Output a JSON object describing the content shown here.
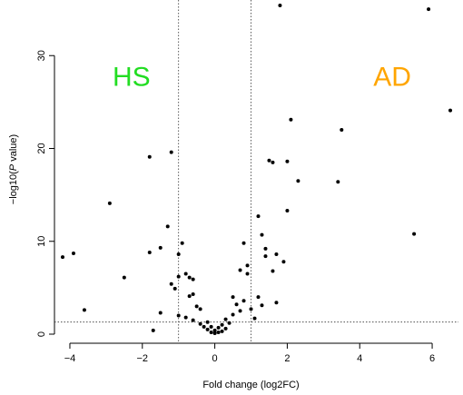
{
  "chart_data": {
    "type": "scatter",
    "title": "",
    "xlabel": "Fold change (log2FC)",
    "ylabel_prefix": "−log10(",
    "ylabel_italic": "P",
    "ylabel_suffix": " value)",
    "xlim": [
      -4.3,
      6.6
    ],
    "ylim": [
      0,
      35.5
    ],
    "x_ticks": [
      -4,
      -2,
      0,
      2,
      4,
      6
    ],
    "y_ticks": [
      0,
      10,
      20,
      30
    ],
    "thresholds": {
      "fold_change": [
        -1,
        1
      ],
      "significance_y": 1.3
    },
    "point_color": "#000000",
    "annotations": [
      {
        "text": "HS",
        "x": -2.3,
        "y": 27.5,
        "color": "#22dd22"
      },
      {
        "text": "AD",
        "x": 4.9,
        "y": 27.5,
        "color": "#ffa500"
      }
    ],
    "points": [
      [
        -4.2,
        8.3
      ],
      [
        -3.9,
        8.7
      ],
      [
        -3.6,
        2.6
      ],
      [
        -2.9,
        14.1
      ],
      [
        -2.5,
        6.1
      ],
      [
        -1.8,
        19.1
      ],
      [
        -1.8,
        8.8
      ],
      [
        -1.7,
        0.4
      ],
      [
        -1.5,
        9.3
      ],
      [
        -1.5,
        2.3
      ],
      [
        -1.3,
        11.6
      ],
      [
        -1.2,
        19.6
      ],
      [
        -1.2,
        5.4
      ],
      [
        -1.1,
        4.9
      ],
      [
        -1.0,
        2.0
      ],
      [
        -1.0,
        8.6
      ],
      [
        -1.0,
        6.2
      ],
      [
        -0.9,
        9.8
      ],
      [
        -0.8,
        6.5
      ],
      [
        -0.8,
        1.8
      ],
      [
        -0.7,
        6.1
      ],
      [
        -0.7,
        4.1
      ],
      [
        -0.6,
        5.9
      ],
      [
        -0.6,
        4.3
      ],
      [
        -0.6,
        1.5
      ],
      [
        -0.5,
        3.0
      ],
      [
        -0.4,
        2.7
      ],
      [
        -0.4,
        1.1
      ],
      [
        -0.3,
        0.8
      ],
      [
        -0.2,
        1.3
      ],
      [
        -0.2,
        0.5
      ],
      [
        -0.1,
        0.2
      ],
      [
        -0.1,
        0.8
      ],
      [
        0.0,
        0.1
      ],
      [
        0.0,
        0.4
      ],
      [
        0.1,
        0.7
      ],
      [
        0.1,
        0.2
      ],
      [
        0.2,
        1.0
      ],
      [
        0.2,
        0.3
      ],
      [
        0.3,
        1.6
      ],
      [
        0.3,
        0.6
      ],
      [
        0.4,
        1.2
      ],
      [
        0.5,
        2.1
      ],
      [
        0.5,
        4.0
      ],
      [
        0.6,
        3.2
      ],
      [
        0.7,
        2.5
      ],
      [
        0.7,
        6.9
      ],
      [
        0.8,
        9.8
      ],
      [
        0.8,
        3.6
      ],
      [
        0.9,
        6.5
      ],
      [
        0.9,
        7.4
      ],
      [
        1.0,
        2.7
      ],
      [
        1.1,
        1.7
      ],
      [
        1.2,
        12.7
      ],
      [
        1.2,
        4.0
      ],
      [
        1.3,
        10.7
      ],
      [
        1.3,
        3.1
      ],
      [
        1.4,
        9.2
      ],
      [
        1.4,
        8.4
      ],
      [
        1.5,
        18.7
      ],
      [
        1.6,
        18.5
      ],
      [
        1.6,
        6.8
      ],
      [
        1.7,
        8.6
      ],
      [
        1.7,
        3.4
      ],
      [
        1.8,
        35.4
      ],
      [
        1.9,
        7.8
      ],
      [
        2.0,
        18.6
      ],
      [
        2.0,
        13.3
      ],
      [
        2.1,
        23.1
      ],
      [
        2.3,
        16.5
      ],
      [
        3.4,
        16.4
      ],
      [
        3.5,
        22.0
      ],
      [
        5.5,
        10.8
      ],
      [
        5.9,
        35.0
      ],
      [
        6.5,
        24.1
      ]
    ]
  }
}
